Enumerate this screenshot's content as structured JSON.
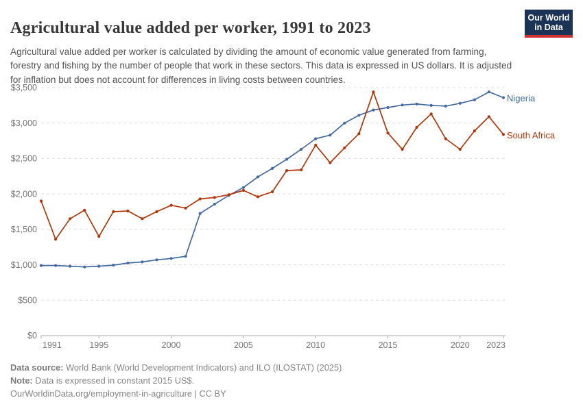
{
  "header": {
    "title": "Agricultural value added per worker, 1991 to 2023",
    "subtitle": "Agricultural value added per worker is calculated by dividing the amount of economic value generated from farming, forestry and fishing by the number of people that work in these sectors. This data is expressed in US dollars. It is adjusted for inflation but does not account for differences in living costs between countries."
  },
  "logo": {
    "line1": "Our World",
    "line2": "in Data"
  },
  "chart_data": {
    "type": "line",
    "title": "Agricultural value added per worker, 1991 to 2023",
    "unit": "constant 2015 US$",
    "x": [
      1991,
      1992,
      1993,
      1994,
      1995,
      1996,
      1997,
      1998,
      1999,
      2000,
      2001,
      2002,
      2003,
      2004,
      2005,
      2006,
      2007,
      2008,
      2009,
      2010,
      2011,
      2012,
      2013,
      2014,
      2015,
      2016,
      2017,
      2018,
      2019,
      2020,
      2021,
      2022,
      2023
    ],
    "series": [
      {
        "name": "Nigeria",
        "color": "#4269a0",
        "label_color": "#3d6a9e",
        "values": [
          990,
          990,
          980,
          970,
          980,
          995,
          1025,
          1040,
          1070,
          1090,
          1120,
          1725,
          1855,
          1980,
          2090,
          2240,
          2360,
          2490,
          2630,
          2780,
          2830,
          3000,
          3110,
          3185,
          3220,
          3255,
          3270,
          3250,
          3240,
          3280,
          3330,
          3440,
          3360
        ]
      },
      {
        "name": "South Africa",
        "color": "#b13507",
        "label_color": "#b13507",
        "values": [
          1900,
          1360,
          1650,
          1770,
          1400,
          1750,
          1760,
          1650,
          1750,
          1840,
          1800,
          1930,
          1950,
          1990,
          2050,
          1960,
          2030,
          2330,
          2340,
          2690,
          2440,
          2650,
          2850,
          3440,
          2860,
          2630,
          2940,
          3130,
          2780,
          2630,
          2890,
          3090,
          2840
        ]
      }
    ],
    "ylim": [
      0,
      3500
    ],
    "y_ticks": [
      {
        "value": 0,
        "label": "$0"
      },
      {
        "value": 500,
        "label": "$500"
      },
      {
        "value": 1000,
        "label": "$1,000"
      },
      {
        "value": 1500,
        "label": "$1,500"
      },
      {
        "value": 2000,
        "label": "$2,000"
      },
      {
        "value": 2500,
        "label": "$2,500"
      },
      {
        "value": 3000,
        "label": "$3,000"
      },
      {
        "value": 3500,
        "label": "$3,500"
      }
    ],
    "x_ticks": [
      {
        "value": 1991,
        "label": "1991"
      },
      {
        "value": 1995,
        "label": "1995"
      },
      {
        "value": 2000,
        "label": "2000"
      },
      {
        "value": 2005,
        "label": "2005"
      },
      {
        "value": 2010,
        "label": "2010"
      },
      {
        "value": 2015,
        "label": "2015"
      },
      {
        "value": 2020,
        "label": "2020"
      },
      {
        "value": 2023,
        "label": "2023"
      }
    ],
    "grid": "dashed-horizontal",
    "legend_position": "line-end-labels"
  },
  "colors": {
    "grid": "#dcdcdc",
    "axis": "#a8a8a8",
    "tick_text": "#737373"
  },
  "footer": {
    "source_label": "Data source:",
    "source_text": " World Bank (World Development Indicators) and ILO (ILOSTAT) (2025)",
    "note_label": "Note:",
    "note_text": " Data is expressed in constant 2015 US$.",
    "url": "OurWorldinData.org/employment-in-agriculture",
    "separator": " | ",
    "license": "CC BY"
  }
}
